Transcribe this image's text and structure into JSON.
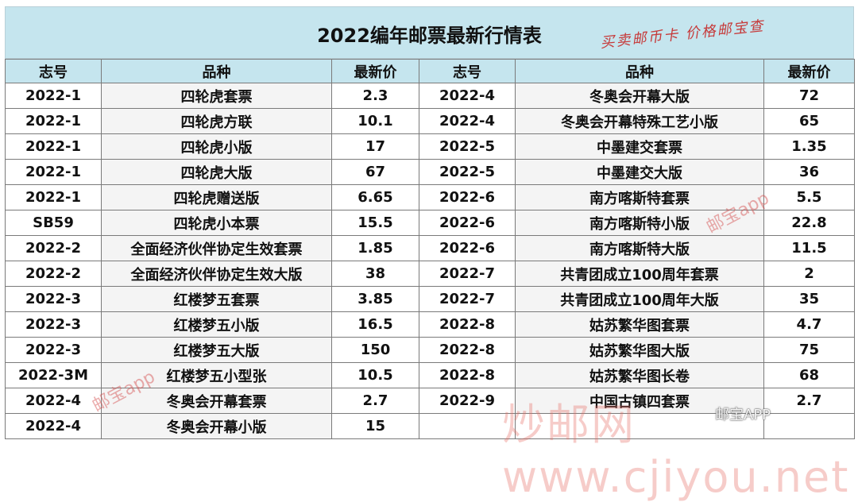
{
  "title": "2022编年邮票最新行情表",
  "stamp_text": "买卖邮币卡  价格邮宝查",
  "headers": {
    "code": "志号",
    "kind": "品种",
    "price": "最新价"
  },
  "left_rows": [
    {
      "code": "2022-1",
      "kind": "四轮虎套票",
      "price": "2.3"
    },
    {
      "code": "2022-1",
      "kind": "四轮虎方联",
      "price": "10.1"
    },
    {
      "code": "2022-1",
      "kind": "四轮虎小版",
      "price": "17"
    },
    {
      "code": "2022-1",
      "kind": "四轮虎大版",
      "price": "67"
    },
    {
      "code": "2022-1",
      "kind": "四轮虎赠送版",
      "price": "6.65"
    },
    {
      "code": "SB59",
      "kind": "四轮虎小本票",
      "price": "15.5"
    },
    {
      "code": "2022-2",
      "kind": "全面经济伙伴协定生效套票",
      "price": "1.85"
    },
    {
      "code": "2022-2",
      "kind": "全面经济伙伴协定生效大版",
      "price": "38"
    },
    {
      "code": "2022-3",
      "kind": "红楼梦五套票",
      "price": "3.85"
    },
    {
      "code": "2022-3",
      "kind": "红楼梦五小版",
      "price": "16.5"
    },
    {
      "code": "2022-3",
      "kind": "红楼梦五大版",
      "price": "150"
    },
    {
      "code": "2022-3M",
      "kind": "红楼梦五小型张",
      "price": "10.5"
    },
    {
      "code": "2022-4",
      "kind": "冬奥会开幕套票",
      "price": "2.7"
    },
    {
      "code": "2022-4",
      "kind": "冬奥会开幕小版",
      "price": "15"
    }
  ],
  "right_rows": [
    {
      "code": "2022-4",
      "kind": "冬奥会开幕大版",
      "price": "72"
    },
    {
      "code": "2022-4",
      "kind": "冬奥会开幕特殊工艺小版",
      "price": "65"
    },
    {
      "code": "2022-5",
      "kind": "中墨建交套票",
      "price": "1.35"
    },
    {
      "code": "2022-5",
      "kind": "中墨建交大版",
      "price": "36"
    },
    {
      "code": "2022-6",
      "kind": "南方喀斯特套票",
      "price": "5.5"
    },
    {
      "code": "2022-6",
      "kind": "南方喀斯特小版",
      "price": "22.8"
    },
    {
      "code": "2022-6",
      "kind": "南方喀斯特大版",
      "price": "11.5"
    },
    {
      "code": "2022-7",
      "kind": "共青团成立100周年套票",
      "price": "2"
    },
    {
      "code": "2022-7",
      "kind": "共青团成立100周年大版",
      "price": "35"
    },
    {
      "code": "2022-8",
      "kind": "姑苏繁华图套票",
      "price": "4.7"
    },
    {
      "code": "2022-8",
      "kind": "姑苏繁华图大版",
      "price": "75"
    },
    {
      "code": "2022-8",
      "kind": "姑苏繁华图长卷",
      "price": "68"
    },
    {
      "code": "2022-9",
      "kind": "中国古镇四套票",
      "price": "2.7"
    },
    {
      "code": "",
      "kind": "",
      "price": ""
    }
  ],
  "watermarks": {
    "app": "邮宝app",
    "site": "炒邮网 www.cjiyou.net",
    "wechat": "邮宝APP"
  }
}
